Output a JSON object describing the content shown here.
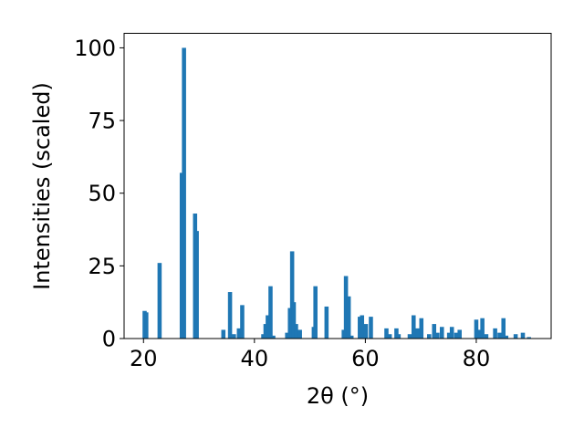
{
  "chart_data": {
    "type": "bar",
    "xlabel": "2θ (°)",
    "ylabel": "Intensities (scaled)",
    "xlim": [
      16.5,
      93.5
    ],
    "ylim": [
      0,
      105
    ],
    "xticks": [
      "20",
      "40",
      "60",
      "80"
    ],
    "yticks": [
      "0",
      "25",
      "50",
      "75",
      "100"
    ],
    "grid": false,
    "bar_color": "#1f77b4",
    "bar_width": 0.75,
    "x": [
      20.2,
      20.5,
      22.9,
      26.9,
      27.3,
      29.3,
      29.6,
      34.4,
      35.6,
      36.3,
      37.2,
      37.8,
      41.6,
      42.0,
      42.4,
      42.9,
      43.4,
      45.9,
      46.4,
      46.8,
      47.1,
      47.5,
      48.2,
      50.7,
      51.0,
      53.0,
      56.1,
      56.5,
      57.0,
      57.5,
      59.0,
      59.4,
      60.1,
      61.0,
      63.8,
      64.4,
      65.6,
      66.0,
      68.0,
      68.7,
      69.4,
      70.1,
      71.5,
      72.4,
      73.0,
      73.8,
      75.1,
      75.6,
      76.4,
      77.0,
      80.0,
      80.5,
      81.1,
      81.8,
      83.4,
      84.2,
      84.9,
      85.4,
      87.1,
      88.4,
      89.5
    ],
    "values": [
      9.5,
      9,
      26,
      57,
      100,
      43,
      37,
      3,
      16,
      1.5,
      3.5,
      11.5,
      1.5,
      5,
      8,
      18,
      1,
      2,
      10.5,
      30,
      12.5,
      5,
      3,
      4,
      18,
      11,
      3,
      21.5,
      14.5,
      1,
      7.5,
      8,
      5,
      7.5,
      3.5,
      1.5,
      3.5,
      1.5,
      1.5,
      8,
      3.5,
      7,
      1.5,
      5,
      2,
      4,
      2,
      4,
      2,
      3,
      6.5,
      3,
      7,
      1.5,
      3.5,
      2,
      7,
      1,
      1.5,
      2,
      0.5
    ]
  }
}
